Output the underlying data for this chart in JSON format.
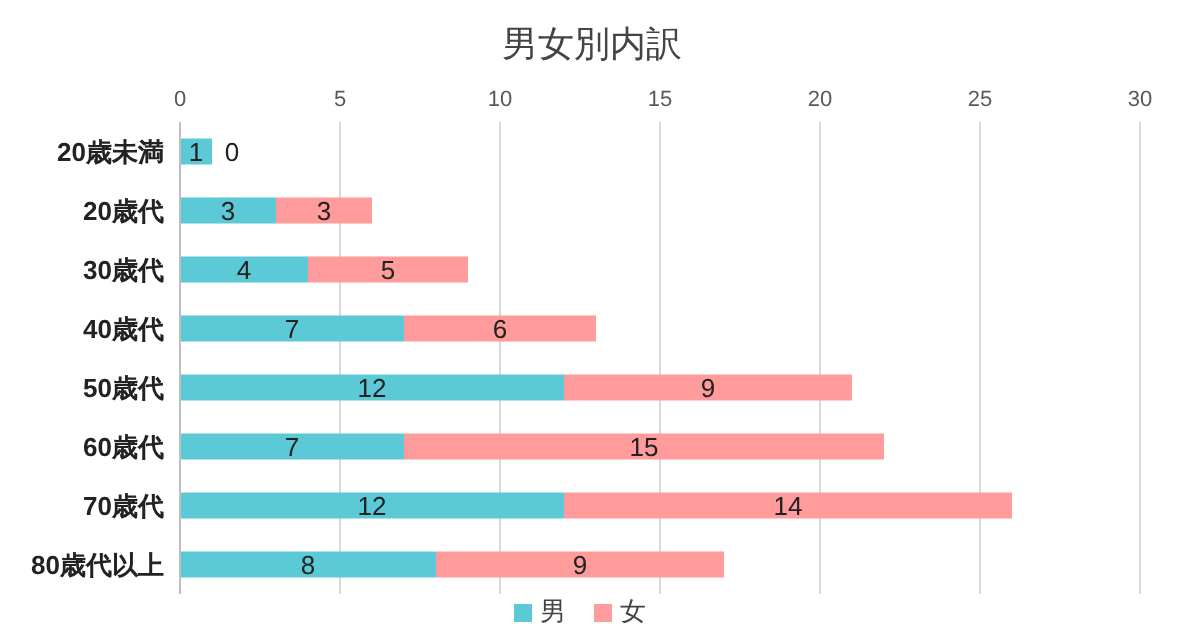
{
  "chart_data": {
    "type": "bar",
    "title": "男女別内訳",
    "orientation": "horizontal",
    "stacked": true,
    "categories": [
      "20歳未満",
      "20歳代",
      "30歳代",
      "40歳代",
      "50歳代",
      "60歳代",
      "70歳代",
      "80歳代以上"
    ],
    "series": [
      {
        "name": "男",
        "color": "#5bc9d6",
        "values": [
          1,
          3,
          4,
          7,
          12,
          7,
          12,
          8
        ]
      },
      {
        "name": "女",
        "color": "#ff9b9b",
        "values": [
          0,
          3,
          5,
          6,
          9,
          15,
          14,
          9
        ]
      }
    ],
    "xlim": [
      0,
      30
    ],
    "xticks": [
      0,
      5,
      10,
      15,
      20,
      25,
      30
    ],
    "grid": "x",
    "legend": "bottom",
    "data_labels": true
  }
}
